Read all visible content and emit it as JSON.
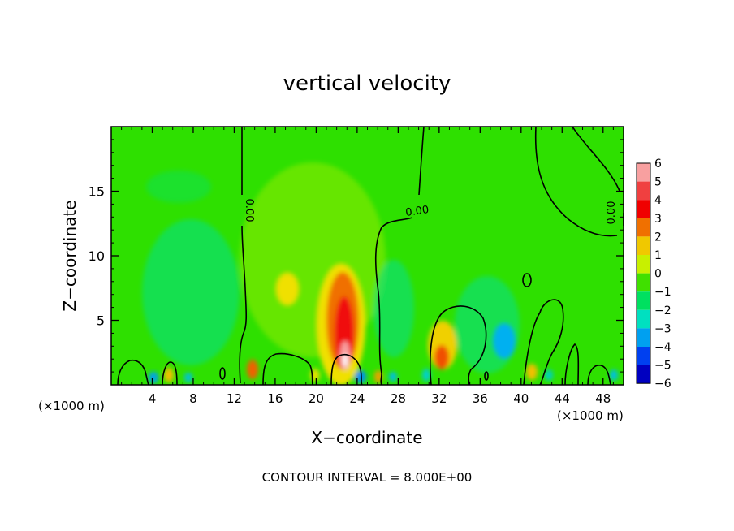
{
  "chart_data": {
    "type": "heatmap",
    "title": "vertical velocity",
    "xlabel": "X−coordinate",
    "ylabel": "Z−coordinate",
    "x_unit_left": "(×1000 m)",
    "x_unit_right": "(×1000 m)",
    "footer": "CONTOUR INTERVAL = 8.000E+00",
    "xlim": [
      0,
      50
    ],
    "ylim": [
      0,
      20
    ],
    "x_ticks": [
      "4",
      "8",
      "12",
      "16",
      "20",
      "24",
      "28",
      "32",
      "36",
      "40",
      "44",
      "48"
    ],
    "y_ticks": [
      "5",
      "10",
      "15"
    ],
    "zero_contour_labels": [
      "0.00",
      "0.00",
      "0.00"
    ],
    "colorbar": {
      "levels": [
        "6",
        "5",
        "4",
        "3",
        "2",
        "1",
        "0",
        "−1",
        "−2",
        "−3",
        "−4",
        "−5",
        "−6"
      ],
      "colors": [
        "#f8a0a0",
        "#f04040",
        "#f00000",
        "#f07000",
        "#f0c800",
        "#c8f000",
        "#40e000",
        "#00e060",
        "#00e0c0",
        "#00a0f0",
        "#0040f0",
        "#0000c0",
        "#8000c0"
      ]
    },
    "field_description": "near-zero background with positive updraft cores",
    "updrafts": [
      {
        "x": 22.8,
        "z": 2.0,
        "w": 6
      },
      {
        "x": 22.0,
        "z": 5.5,
        "w": 4
      },
      {
        "x": 17.5,
        "z": 7.0,
        "w": 2
      },
      {
        "x": 32.5,
        "z": 2.0,
        "w": 3
      },
      {
        "x": 13.8,
        "z": 1.0,
        "w": 3
      },
      {
        "x": 41.0,
        "z": 1.0,
        "w": 2
      },
      {
        "x": 5.5,
        "z": 0.8,
        "w": 2
      },
      {
        "x": 26.0,
        "z": 0.8,
        "w": 2
      }
    ],
    "downdrafts": [
      {
        "x": 38.5,
        "z": 3.5,
        "w": -3
      },
      {
        "x": 7.5,
        "z": 6.0,
        "w": -2
      },
      {
        "x": 24.5,
        "z": 0.8,
        "w": -3
      },
      {
        "x": 4.0,
        "z": 0.7,
        "w": -3
      },
      {
        "x": 30.0,
        "z": 0.8,
        "w": -2
      }
    ]
  }
}
